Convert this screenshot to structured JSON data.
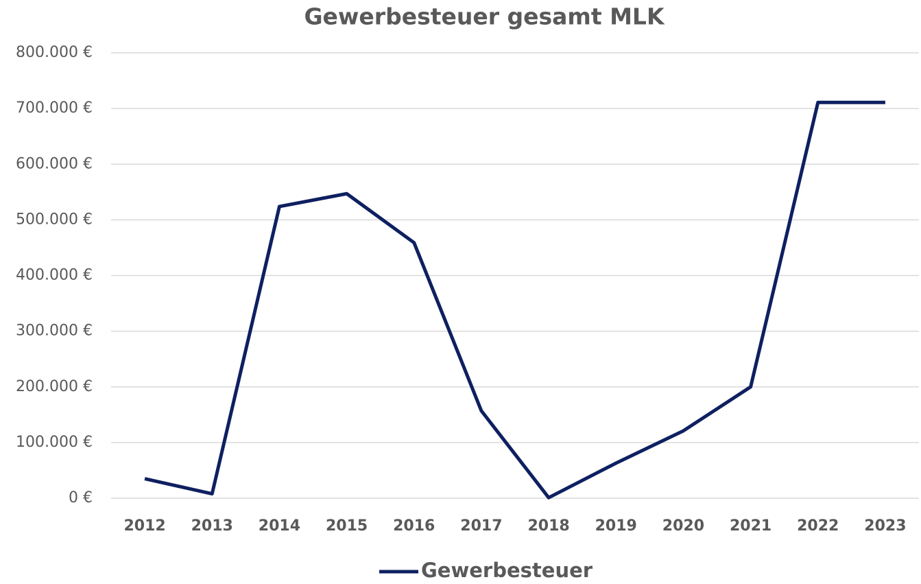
{
  "chart_data": {
    "type": "line",
    "title": "Gewerbesteuer gesamt MLK",
    "categories": [
      "2012",
      "2013",
      "2014",
      "2015",
      "2016",
      "2017",
      "2018",
      "2019",
      "2020",
      "2021",
      "2022",
      "2023"
    ],
    "series": [
      {
        "name": "Gewerbesteuer",
        "color": "#0e2060",
        "values": [
          35000,
          8000,
          524000,
          547000,
          459000,
          157000,
          1000,
          63000,
          121000,
          200000,
          711000,
          711000
        ]
      }
    ],
    "ylim": [
      0,
      800000
    ],
    "yticks": [
      {
        "value": 0,
        "label": "0 €"
      },
      {
        "value": 100000,
        "label": "100.000 €"
      },
      {
        "value": 200000,
        "label": "200.000 €"
      },
      {
        "value": 300000,
        "label": "300.000 €"
      },
      {
        "value": 400000,
        "label": "400.000 €"
      },
      {
        "value": 500000,
        "label": "500.000 €"
      },
      {
        "value": 600000,
        "label": "600.000 €"
      },
      {
        "value": 700000,
        "label": "700.000 €"
      },
      {
        "value": 800000,
        "label": "800.000 €"
      }
    ],
    "grid": true,
    "legend": "bottom"
  }
}
